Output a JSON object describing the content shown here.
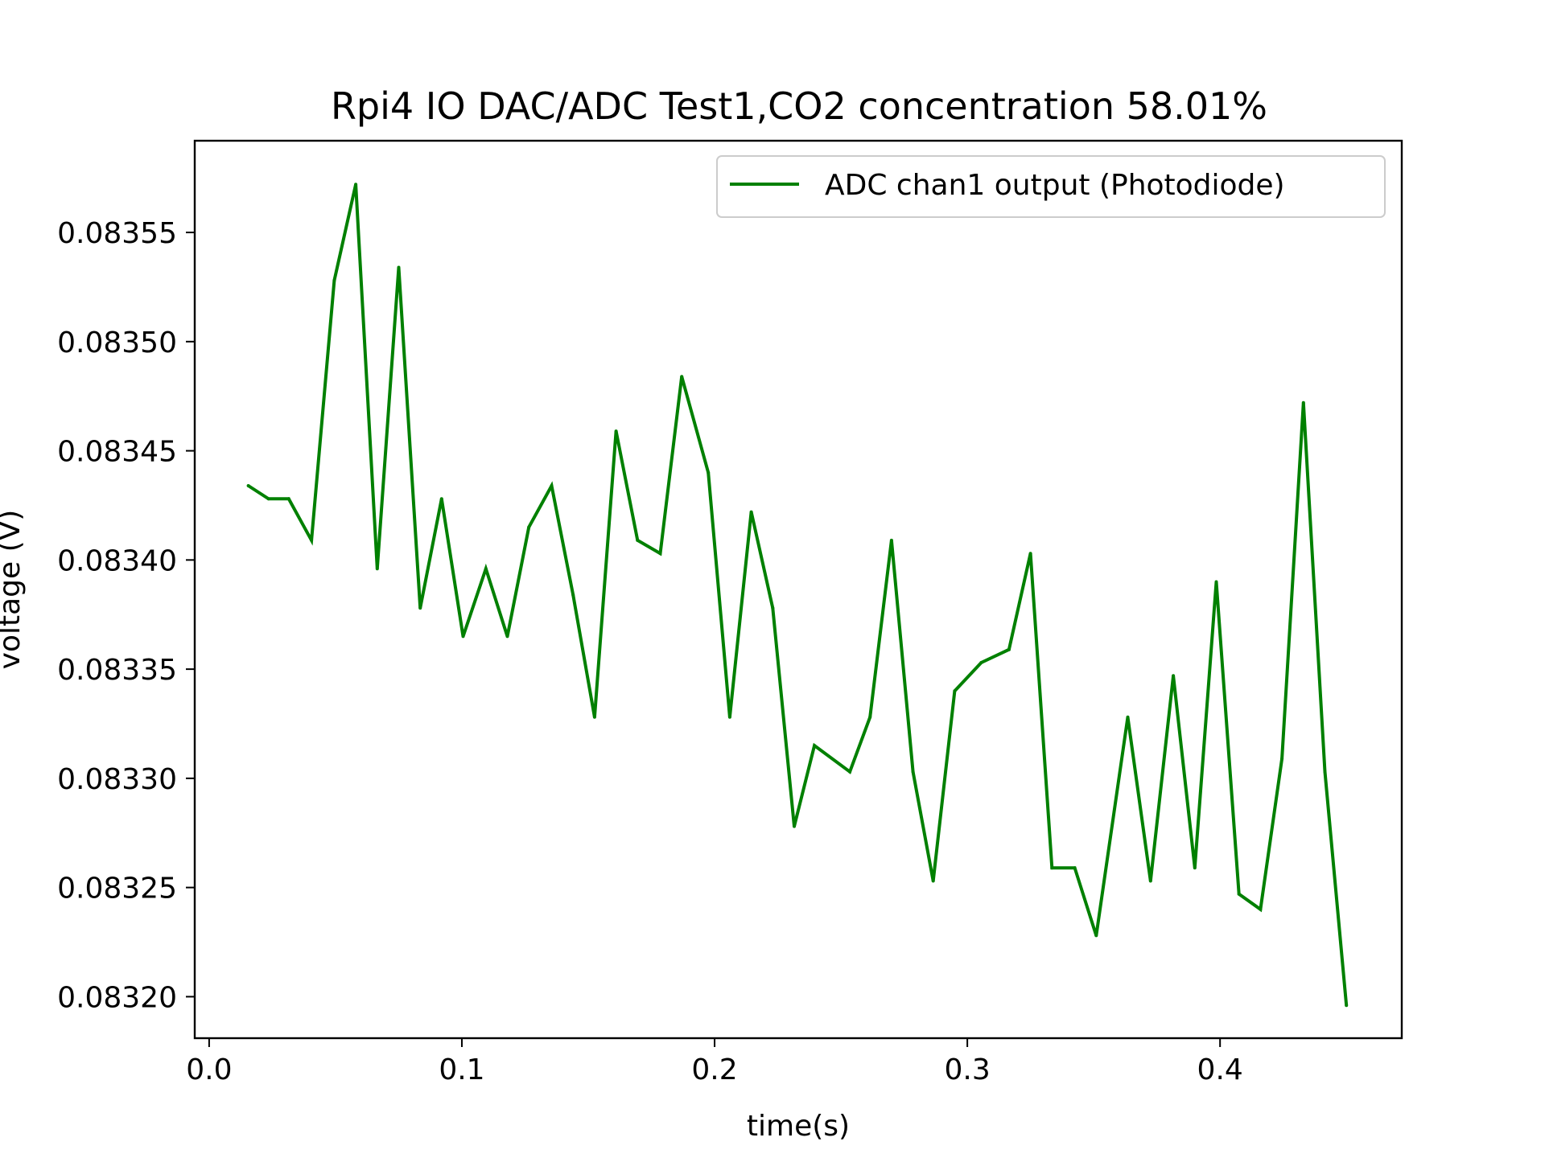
{
  "chart_data": {
    "type": "line",
    "title": "Rpi4 IO DAC/ADC Test1,CO2 concentration 58.01%",
    "xlabel": "time(s)",
    "ylabel": "voltage (V)",
    "xlim": [
      -0.0057,
      0.4719
    ],
    "ylim": [
      0.083181,
      0.083592
    ],
    "xticks": [
      0.0,
      0.1,
      0.2,
      0.3,
      0.4
    ],
    "xtick_labels": [
      "0.0",
      "0.1",
      "0.2",
      "0.3",
      "0.4"
    ],
    "yticks": [
      0.0832,
      0.08325,
      0.0833,
      0.08335,
      0.0834,
      0.08345,
      0.0835,
      0.08355
    ],
    "ytick_labels": [
      "0.08320",
      "0.08325",
      "0.08330",
      "0.08335",
      "0.08340",
      "0.08345",
      "0.08350",
      "0.08355"
    ],
    "grid": false,
    "legend": {
      "position": "top-right"
    },
    "series": [
      {
        "name": "ADC chan1 output  (Photodiode)",
        "color": "#008000",
        "x": [
          0.0155,
          0.0235,
          0.0315,
          0.0405,
          0.0495,
          0.058,
          0.0665,
          0.075,
          0.0835,
          0.092,
          0.1005,
          0.1095,
          0.118,
          0.1265,
          0.1355,
          0.144,
          0.1525,
          0.161,
          0.1695,
          0.1785,
          0.187,
          0.1975,
          0.206,
          0.2145,
          0.223,
          0.2315,
          0.2395,
          0.2535,
          0.2615,
          0.27,
          0.2785,
          0.2865,
          0.295,
          0.3055,
          0.3165,
          0.325,
          0.3335,
          0.3425,
          0.351,
          0.3635,
          0.3725,
          0.3815,
          0.39,
          0.3985,
          0.4075,
          0.416,
          0.4245,
          0.433,
          0.4415,
          0.45
        ],
        "y": [
          0.083434,
          0.083428,
          0.083428,
          0.083409,
          0.083528,
          0.083572,
          0.083396,
          0.083534,
          0.083378,
          0.083428,
          0.083365,
          0.083396,
          0.083365,
          0.083415,
          0.083434,
          0.083384,
          0.083328,
          0.083459,
          0.083409,
          0.083403,
          0.083484,
          0.08344,
          0.083328,
          0.083422,
          0.083378,
          0.083278,
          0.083315,
          0.083303,
          0.083328,
          0.083409,
          0.083303,
          0.083253,
          0.08334,
          0.083353,
          0.083359,
          0.083403,
          0.083259,
          0.083259,
          0.083228,
          0.083328,
          0.083253,
          0.083347,
          0.083259,
          0.08339,
          0.083247,
          0.08324,
          0.083309,
          0.083472,
          0.083303,
          0.083196
        ]
      }
    ]
  }
}
